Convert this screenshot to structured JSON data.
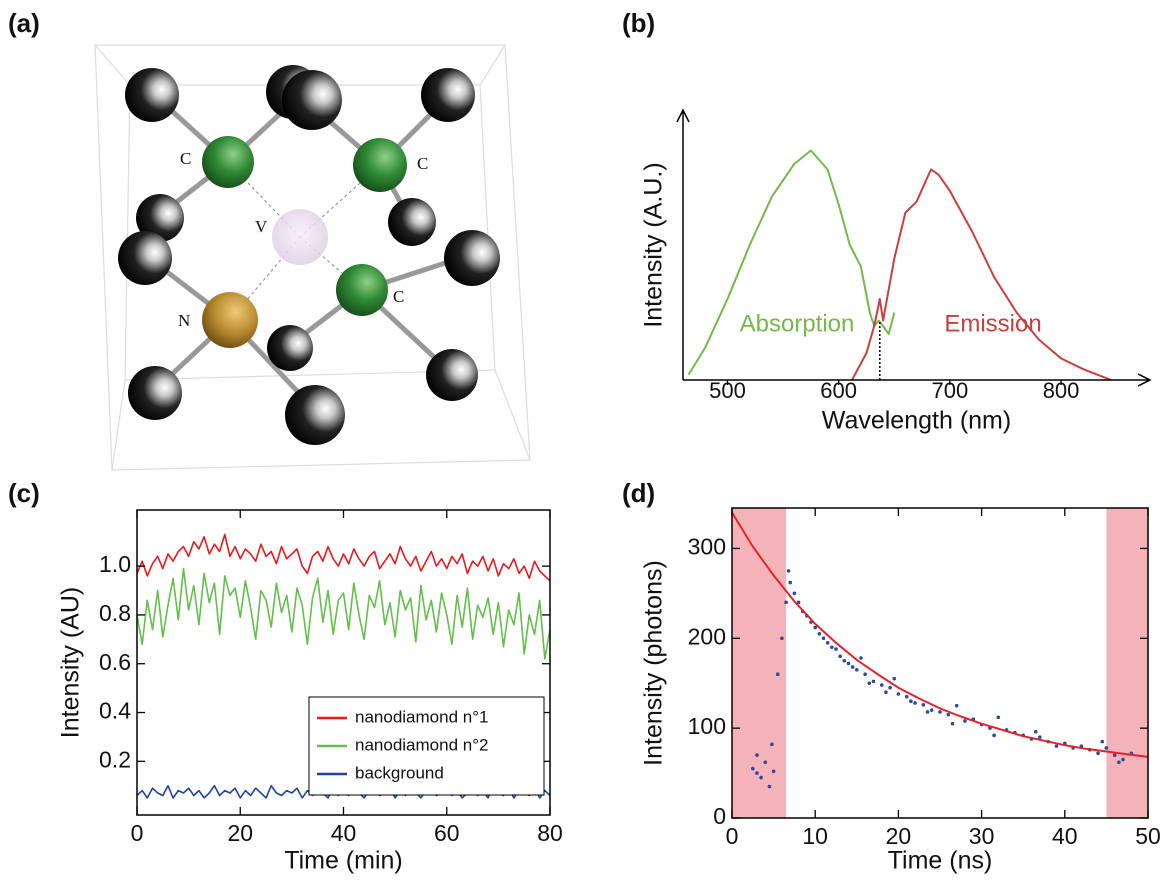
{
  "diagram": {
    "label": "(a)",
    "atoms": [
      "C",
      "C",
      "V",
      "N",
      "C"
    ]
  },
  "chart_data": [
    {
      "type": "line",
      "label": "(b)",
      "axis_style": "arrows",
      "legend": "inline",
      "xlabel": "Wavelength (nm)",
      "ylabel": "Intensity (A.U.)",
      "xlim": [
        460,
        880
      ],
      "ylim": [
        0,
        1
      ],
      "xticks": [
        500,
        600,
        700,
        800
      ],
      "vline": 637,
      "series": [
        {
          "name": "Absorption",
          "color": "#74b84a",
          "x": [
            465,
            480,
            500,
            520,
            540,
            560,
            575,
            590,
            600,
            610,
            620,
            628,
            632,
            636,
            640,
            645,
            650
          ],
          "values": [
            0.02,
            0.12,
            0.3,
            0.5,
            0.68,
            0.8,
            0.85,
            0.78,
            0.65,
            0.5,
            0.42,
            0.25,
            0.2,
            0.22,
            0.2,
            0.17,
            0.25
          ]
        },
        {
          "name": "Emission",
          "color": "#c8403c",
          "x": [
            612,
            625,
            632,
            637,
            640,
            650,
            660,
            670,
            683,
            690,
            700,
            720,
            740,
            760,
            780,
            800,
            820,
            845
          ],
          "values": [
            0,
            0.1,
            0.2,
            0.3,
            0.22,
            0.45,
            0.62,
            0.66,
            0.78,
            0.76,
            0.7,
            0.55,
            0.38,
            0.25,
            0.15,
            0.08,
            0.04,
            0
          ]
        }
      ]
    },
    {
      "type": "line",
      "label": "(c)",
      "axis_style": "box",
      "legend": "lower right",
      "xlabel": "Time (min)",
      "ylabel": "Intensity (AU)",
      "xlim": [
        0,
        80
      ],
      "ylim": [
        -0.02,
        1.23
      ],
      "xticks": [
        0,
        20,
        40,
        60,
        80
      ],
      "yticks": [
        0.2,
        0.4,
        0.6,
        0.8,
        {
          "value": 1,
          "label": "1.0"
        }
      ],
      "series": [
        {
          "name": "nanodiamond n°1",
          "color": "#e8191c",
          "x": [
            0,
            1,
            2,
            3,
            4,
            5,
            6,
            7,
            8,
            9,
            10,
            11,
            12,
            13,
            14,
            15,
            16,
            17,
            18,
            19,
            20,
            21,
            22,
            23,
            24,
            25,
            26,
            27,
            28,
            29,
            30,
            31,
            32,
            33,
            34,
            35,
            36,
            37,
            38,
            39,
            40,
            41,
            42,
            43,
            44,
            45,
            46,
            47,
            48,
            49,
            50,
            51,
            52,
            53,
            54,
            55,
            56,
            57,
            58,
            59,
            60,
            61,
            62,
            63,
            64,
            65,
            66,
            67,
            68,
            69,
            70,
            71,
            72,
            73,
            74,
            75,
            76,
            77,
            78,
            79,
            80
          ],
          "values": [
            0.97,
            1.02,
            0.96,
            1.01,
            1.04,
            0.99,
            1.05,
            1.02,
            1.06,
            1.08,
            1.04,
            1.1,
            1.07,
            1.12,
            1.05,
            1.09,
            1.06,
            1.13,
            1.04,
            1.08,
            1.03,
            1.07,
            1.05,
            1.02,
            1.09,
            1.04,
            1.06,
            1.01,
            1.08,
            1.03,
            1.05,
            1.07,
            1.0,
            0.97,
            1.04,
            1.06,
            1.02,
            1.08,
            1.03,
            1.0,
            1.05,
            1.01,
            1.07,
            1.03,
            1.0,
            1.04,
            1.06,
            0.99,
            1.02,
            1.05,
            1.01,
            1.08,
            1.03,
            1.0,
            1.04,
            0.98,
            1.02,
            1.06,
            1.0,
            1.03,
            0.99,
            1.04,
            1.01,
            1.05,
            0.97,
            1.02,
            1.0,
            1.04,
            0.98,
            1.03,
            0.96,
            1.01,
            0.99,
            1.03,
            0.97,
            1.0,
            0.95,
            1.02,
            0.98,
            0.96,
            0.94
          ]
        },
        {
          "name": "nanodiamond n°2",
          "color": "#63bf4a",
          "x": [
            0,
            1,
            2,
            3,
            4,
            5,
            6,
            7,
            8,
            9,
            10,
            11,
            12,
            13,
            14,
            15,
            16,
            17,
            18,
            19,
            20,
            21,
            22,
            23,
            24,
            25,
            26,
            27,
            28,
            29,
            30,
            31,
            32,
            33,
            34,
            35,
            36,
            37,
            38,
            39,
            40,
            41,
            42,
            43,
            44,
            45,
            46,
            47,
            48,
            49,
            50,
            51,
            52,
            53,
            54,
            55,
            56,
            57,
            58,
            59,
            60,
            61,
            62,
            63,
            64,
            65,
            66,
            67,
            68,
            69,
            70,
            71,
            72,
            73,
            74,
            75,
            76,
            77,
            78,
            79,
            80
          ],
          "values": [
            0.8,
            0.68,
            0.86,
            0.74,
            0.9,
            0.71,
            0.84,
            0.95,
            0.78,
            0.99,
            0.82,
            0.92,
            0.76,
            0.97,
            0.85,
            0.93,
            0.72,
            0.96,
            0.88,
            0.91,
            0.79,
            0.94,
            0.83,
            0.7,
            0.9,
            0.86,
            0.75,
            0.93,
            0.81,
            0.88,
            0.73,
            0.91,
            0.84,
            0.68,
            0.87,
            0.95,
            0.77,
            0.9,
            0.72,
            0.86,
            0.89,
            0.74,
            0.93,
            0.8,
            0.7,
            0.88,
            0.83,
            0.94,
            0.76,
            0.85,
            0.71,
            0.9,
            0.82,
            0.87,
            0.69,
            0.92,
            0.78,
            0.86,
            0.73,
            0.89,
            0.8,
            0.68,
            0.88,
            0.75,
            0.91,
            0.7,
            0.84,
            0.79,
            0.87,
            0.72,
            0.85,
            0.67,
            0.82,
            0.76,
            0.89,
            0.64,
            0.8,
            0.72,
            0.86,
            0.62,
            0.74
          ]
        },
        {
          "name": "background",
          "color": "#2243a0",
          "x": [
            0,
            1,
            2,
            3,
            4,
            5,
            6,
            7,
            8,
            9,
            10,
            11,
            12,
            13,
            14,
            15,
            16,
            17,
            18,
            19,
            20,
            21,
            22,
            23,
            24,
            25,
            26,
            27,
            28,
            29,
            30,
            31,
            32,
            33,
            34,
            35,
            36,
            37,
            38,
            39,
            40,
            41,
            42,
            43,
            44,
            45,
            46,
            47,
            48,
            49,
            50,
            51,
            52,
            53,
            54,
            55,
            56,
            57,
            58,
            59,
            60,
            61,
            62,
            63,
            64,
            65,
            66,
            67,
            68,
            69,
            70,
            71,
            72,
            73,
            74,
            75,
            76,
            77,
            78,
            79,
            80
          ],
          "values": [
            0.06,
            0.08,
            0.05,
            0.09,
            0.07,
            0.06,
            0.1,
            0.05,
            0.08,
            0.07,
            0.09,
            0.06,
            0.08,
            0.05,
            0.07,
            0.1,
            0.06,
            0.08,
            0.07,
            0.09,
            0.05,
            0.08,
            0.06,
            0.09,
            0.07,
            0.05,
            0.1,
            0.07,
            0.06,
            0.08,
            0.07,
            0.09,
            0.05,
            0.08,
            0.06,
            0.1,
            0.07,
            0.05,
            0.09,
            0.06,
            0.08,
            0.06,
            0.09,
            0.07,
            0.05,
            0.08,
            0.1,
            0.06,
            0.07,
            0.09,
            0.05,
            0.08,
            0.06,
            0.09,
            0.07,
            0.05,
            0.08,
            0.1,
            0.06,
            0.07,
            0.09,
            0.06,
            0.08,
            0.05,
            0.07,
            0.09,
            0.06,
            0.08,
            0.05,
            0.1,
            0.07,
            0.06,
            0.09,
            0.05,
            0.08,
            0.07,
            0.06,
            0.09,
            0.05,
            0.08,
            0.06
          ]
        }
      ]
    },
    {
      "type": "scatter",
      "label": "(d)",
      "axis_style": "box",
      "xlabel": "Time (ns)",
      "ylabel": "Intensity (photons)",
      "xlim": [
        0,
        50
      ],
      "ylim": [
        0,
        345
      ],
      "xticks": [
        0,
        10,
        20,
        30,
        40,
        50
      ],
      "yticks": [
        0,
        100,
        200,
        300
      ],
      "spans": [
        [
          0,
          6.5
        ],
        [
          45,
          50
        ]
      ],
      "span_color": "#f4b3b9",
      "series": [
        {
          "type": "scatter",
          "color": "#2b4aa0",
          "x": [
            2.5,
            3,
            3.5,
            4,
            4.5,
            5,
            3,
            4.8,
            5.5,
            6,
            6.5,
            6.8,
            7,
            7.5,
            8,
            8.5,
            9,
            9.5,
            10,
            10.5,
            11,
            11.5,
            12,
            12.5,
            13,
            13.5,
            14,
            14.5,
            15,
            16,
            16.5,
            17,
            18,
            18.5,
            19,
            20,
            21,
            21.5,
            22,
            23,
            24,
            25,
            26,
            27,
            28,
            29,
            30,
            31,
            32,
            33,
            34,
            35,
            36,
            37,
            38,
            39,
            40,
            41,
            42,
            43,
            44,
            45,
            46,
            47,
            48,
            44.5,
            46.5,
            15.5,
            19.5,
            23.5,
            26.5,
            31.5,
            36.5
          ],
          "values": [
            55,
            50,
            45,
            62,
            35,
            52,
            70,
            82,
            160,
            200,
            240,
            275,
            262,
            250,
            240,
            230,
            225,
            218,
            212,
            205,
            200,
            195,
            190,
            188,
            180,
            175,
            172,
            168,
            165,
            160,
            150,
            152,
            148,
            140,
            145,
            138,
            135,
            130,
            128,
            126,
            120,
            118,
            115,
            125,
            108,
            110,
            104,
            100,
            112,
            98,
            95,
            92,
            88,
            90,
            85,
            80,
            83,
            78,
            80,
            76,
            72,
            78,
            70,
            65,
            72,
            85,
            62,
            178,
            155,
            118,
            105,
            92,
            96
          ]
        },
        {
          "type": "line",
          "color": "#e8202a",
          "x": [
            0,
            2.5,
            5,
            7.5,
            10,
            12.5,
            15,
            17.5,
            20,
            22.5,
            25,
            27.5,
            30,
            32.5,
            35,
            37.5,
            40,
            42.5,
            45,
            47.5,
            50
          ],
          "values": [
            340,
            302,
            270,
            241,
            216,
            195,
            176,
            160,
            145,
            133,
            122,
            113,
            105,
            98,
            91,
            86,
            81,
            77,
            74,
            71,
            68
          ]
        }
      ]
    }
  ]
}
